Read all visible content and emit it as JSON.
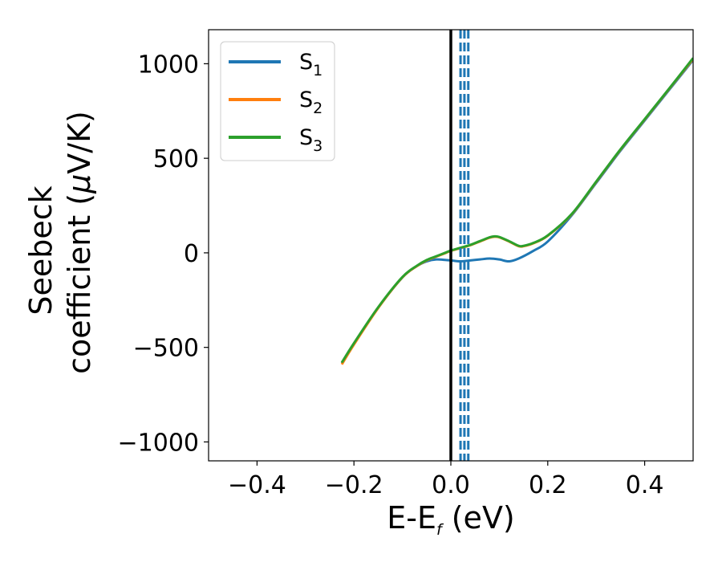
{
  "chart_data": {
    "type": "line",
    "title": "",
    "xlabel": "E-E",
    "xlabel_sub": "f",
    "xlabel_unit": " (eV)",
    "ylabel_line1": "Seebeck",
    "ylabel_line2": "coefficient  (",
    "ylabel_mu": "μ",
    "ylabel_line2_end": "V/K)",
    "xlim": [
      -0.5,
      0.5
    ],
    "ylim": [
      -1100,
      1180
    ],
    "xticks": [
      -0.4,
      -0.2,
      0.0,
      0.2,
      0.4
    ],
    "xtick_labels": [
      "−0.4",
      "−0.2",
      "0.0",
      "0.2",
      "0.4"
    ],
    "yticks": [
      -1000,
      -500,
      0,
      500,
      1000
    ],
    "ytick_labels": [
      "−1000",
      "−500",
      "0",
      "500",
      "1000"
    ],
    "grid": false,
    "legend_position": "top-left",
    "fermi_line": {
      "x": 0.0,
      "color": "#000000"
    },
    "dashed_lines": {
      "x": [
        0.02,
        0.028,
        0.036
      ],
      "color": "#1f77b4"
    },
    "series": [
      {
        "name": "S",
        "sub": "1",
        "color": "#1f77b4",
        "x": [
          -0.225,
          -0.2,
          -0.15,
          -0.1,
          -0.07,
          -0.05,
          -0.03,
          -0.01,
          0.0,
          0.02,
          0.04,
          0.06,
          0.08,
          0.1,
          0.12,
          0.14,
          0.17,
          0.2,
          0.25,
          0.3,
          0.35,
          0.4,
          0.45,
          0.5
        ],
        "y": [
          -585,
          -480,
          -290,
          -130,
          -70,
          -45,
          -35,
          -38,
          -40,
          -45,
          -40,
          -35,
          -30,
          -35,
          -45,
          -30,
          10,
          60,
          200,
          370,
          540,
          700,
          860,
          1020
        ]
      },
      {
        "name": "S",
        "sub": "2",
        "color": "#ff7f0e",
        "x": [
          -0.225,
          -0.2,
          -0.15,
          -0.1,
          -0.07,
          -0.05,
          -0.03,
          -0.01,
          0.0,
          0.02,
          0.04,
          0.06,
          0.08,
          0.09,
          0.1,
          0.12,
          0.14,
          0.15,
          0.17,
          0.2,
          0.25,
          0.3,
          0.35,
          0.4,
          0.45,
          0.5
        ],
        "y": [
          -590,
          -485,
          -292,
          -130,
          -70,
          -40,
          -20,
          0,
          10,
          25,
          40,
          60,
          80,
          85,
          82,
          60,
          35,
          35,
          50,
          90,
          205,
          375,
          545,
          705,
          865,
          1025
        ]
      },
      {
        "name": "S",
        "sub": "3",
        "color": "#2ca02c",
        "x": [
          -0.225,
          -0.2,
          -0.15,
          -0.1,
          -0.07,
          -0.05,
          -0.03,
          -0.01,
          0.0,
          0.02,
          0.04,
          0.06,
          0.08,
          0.09,
          0.1,
          0.12,
          0.14,
          0.15,
          0.17,
          0.2,
          0.25,
          0.3,
          0.35,
          0.4,
          0.45,
          0.5
        ],
        "y": [
          -580,
          -478,
          -288,
          -128,
          -68,
          -38,
          -18,
          2,
          12,
          27,
          42,
          62,
          82,
          87,
          84,
          62,
          37,
          37,
          52,
          92,
          207,
          377,
          547,
          707,
          867,
          1030
        ]
      }
    ]
  }
}
